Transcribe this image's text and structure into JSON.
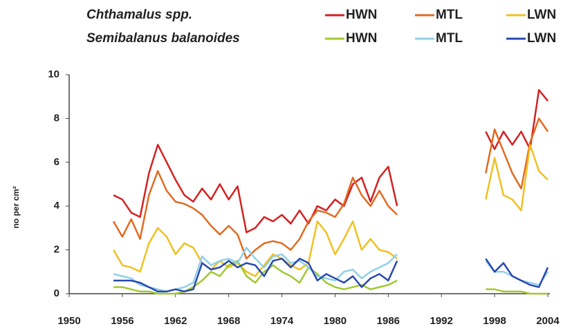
{
  "chart_data": {
    "type": "line",
    "legend_groups": [
      "Chthamalus spp.",
      "Semibalanus balanoides"
    ],
    "y_label": "no per cm²",
    "x": [
      1955,
      1956,
      1957,
      1958,
      1959,
      1960,
      1961,
      1962,
      1963,
      1964,
      1965,
      1966,
      1967,
      1968,
      1969,
      1970,
      1971,
      1972,
      1973,
      1974,
      1975,
      1976,
      1977,
      1978,
      1979,
      1980,
      1981,
      1982,
      1983,
      1984,
      1985,
      1986,
      1987,
      1992,
      1997,
      1998,
      1999,
      2000,
      2001,
      2002,
      2003,
      2004
    ],
    "xlim": [
      1950,
      2004
    ],
    "xticks": [
      1950,
      1956,
      1962,
      1968,
      1974,
      1980,
      1986,
      1992,
      1998,
      2004
    ],
    "ylim": [
      0,
      10
    ],
    "yticks": [
      0,
      2,
      4,
      6,
      8,
      10
    ],
    "series": [
      {
        "name": "HWN",
        "group": 0,
        "color": "#d42020",
        "values": [
          4.5,
          4.3,
          3.7,
          3.5,
          5.5,
          6.8,
          6.0,
          5.2,
          4.5,
          4.2,
          4.8,
          4.3,
          5.0,
          4.3,
          4.9,
          2.8,
          3.0,
          3.5,
          3.3,
          3.6,
          3.2,
          3.8,
          3.2,
          4.0,
          3.8,
          4.3,
          4.0,
          5.0,
          5.3,
          4.2,
          5.3,
          5.8,
          4.0,
          null,
          7.4,
          6.6,
          7.4,
          6.8,
          7.4,
          6.6,
          9.3,
          8.8
        ]
      },
      {
        "name": "MTL",
        "group": 0,
        "color": "#e06a20",
        "values": [
          3.3,
          2.6,
          3.4,
          2.5,
          4.5,
          5.6,
          4.7,
          4.2,
          4.1,
          3.9,
          3.6,
          3.1,
          2.7,
          3.1,
          2.7,
          1.6,
          2.0,
          2.3,
          2.4,
          2.3,
          2.0,
          2.5,
          3.3,
          3.8,
          3.7,
          3.5,
          4.1,
          5.3,
          4.5,
          4.0,
          4.7,
          4.0,
          3.6,
          null,
          5.5,
          7.5,
          6.5,
          5.5,
          4.8,
          6.9,
          8.0,
          7.4
        ]
      },
      {
        "name": "LWN",
        "group": 0,
        "color": "#f0c020",
        "values": [
          2.0,
          1.3,
          1.2,
          1.0,
          2.3,
          3.0,
          2.6,
          1.8,
          2.3,
          2.1,
          1.4,
          1.1,
          1.5,
          1.2,
          1.4,
          1.0,
          0.8,
          1.3,
          1.8,
          1.6,
          1.3,
          1.1,
          1.4,
          3.3,
          2.8,
          1.8,
          2.5,
          3.3,
          2.0,
          2.5,
          2.0,
          1.9,
          1.6,
          null,
          4.3,
          6.2,
          4.5,
          4.3,
          3.8,
          6.8,
          5.6,
          5.2
        ]
      },
      {
        "name": "HWN",
        "group": 1,
        "color": "#a0c830",
        "values": [
          0.3,
          0.3,
          0.2,
          0.1,
          0.1,
          0.0,
          0.0,
          0.0,
          0.1,
          0.3,
          0.6,
          1.0,
          0.8,
          1.3,
          1.5,
          0.8,
          0.5,
          1.0,
          1.3,
          1.0,
          0.8,
          0.5,
          1.2,
          0.9,
          0.5,
          0.3,
          0.2,
          0.3,
          0.4,
          0.2,
          0.3,
          0.4,
          0.6,
          null,
          0.2,
          0.2,
          0.1,
          0.1,
          0.1,
          0.0,
          0.0,
          0.0
        ]
      },
      {
        "name": "MTL",
        "group": 1,
        "color": "#90d0e8",
        "values": [
          0.9,
          0.8,
          0.7,
          0.4,
          0.3,
          0.2,
          0.1,
          0.2,
          0.3,
          0.5,
          1.7,
          1.3,
          1.5,
          1.6,
          1.4,
          2.1,
          1.6,
          1.2,
          1.7,
          1.8,
          1.4,
          1.5,
          1.2,
          0.8,
          0.7,
          0.6,
          1.0,
          1.1,
          0.7,
          1.0,
          1.2,
          1.4,
          1.8,
          null,
          1.5,
          1.0,
          1.0,
          0.8,
          0.6,
          0.5,
          0.4,
          1.0
        ]
      },
      {
        "name": "LWN",
        "group": 1,
        "color": "#2848b0",
        "values": [
          0.6,
          0.6,
          0.6,
          0.5,
          0.3,
          0.1,
          0.1,
          0.2,
          0.1,
          0.2,
          1.4,
          1.1,
          1.2,
          1.5,
          1.2,
          1.4,
          1.3,
          0.8,
          1.5,
          1.6,
          1.2,
          1.6,
          1.4,
          0.6,
          0.9,
          0.7,
          0.5,
          0.8,
          0.3,
          0.7,
          0.9,
          0.6,
          1.5,
          null,
          1.6,
          1.0,
          1.4,
          0.8,
          0.6,
          0.4,
          0.3,
          1.2
        ]
      }
    ]
  }
}
